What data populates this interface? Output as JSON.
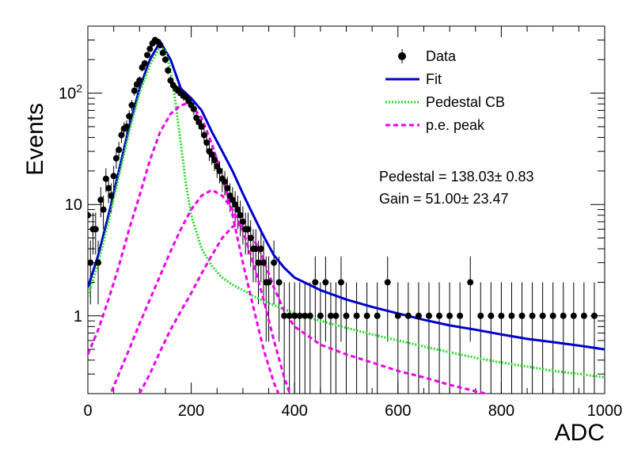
{
  "chart_data": {
    "type": "scatter",
    "title": "",
    "xlabel": "ADC",
    "ylabel": "Events",
    "xlim": [
      0,
      1000
    ],
    "ylim": [
      0.2,
      400
    ],
    "yscale": "log",
    "grid": false,
    "legend_position": "top-right",
    "x_ticks": [
      0,
      200,
      400,
      600,
      800,
      1000
    ],
    "x_tick_labels": [
      "0",
      "200",
      "400",
      "600",
      "800",
      "1000"
    ],
    "y_ticks": [
      1,
      10,
      100
    ],
    "y_tick_labels": [
      "1",
      "10",
      "10^2"
    ],
    "legend": [
      {
        "label": "Data",
        "style": "marker",
        "color": "#000000"
      },
      {
        "label": "Fit",
        "style": "solid",
        "color": "#0000cc"
      },
      {
        "label": "Pedestal CB",
        "style": "dotted",
        "color": "#22dd22"
      },
      {
        "label": "p.e. peak",
        "style": "dashed",
        "color": "#ee00ee"
      }
    ],
    "annotations": [
      {
        "text": "Pedestal = 138.03± 0.83"
      },
      {
        "text": "Gain = 51.00± 23.47"
      }
    ],
    "fit_params": {
      "pedestal": 138.03,
      "pedestal_err": 0.83,
      "gain": 51.0,
      "gain_err": 23.47
    },
    "series": [
      {
        "name": "Data",
        "kind": "points",
        "color": "#000000",
        "x": [
          0,
          5,
          10,
          15,
          20,
          25,
          30,
          35,
          40,
          45,
          50,
          55,
          60,
          65,
          70,
          75,
          80,
          85,
          90,
          95,
          100,
          105,
          110,
          115,
          120,
          125,
          130,
          135,
          140,
          145,
          150,
          155,
          160,
          165,
          170,
          175,
          180,
          185,
          190,
          195,
          200,
          205,
          210,
          215,
          220,
          225,
          230,
          235,
          240,
          245,
          250,
          255,
          260,
          265,
          270,
          275,
          280,
          285,
          290,
          295,
          300,
          305,
          310,
          315,
          320,
          325,
          330,
          335,
          340,
          345,
          350,
          360,
          370,
          380,
          390,
          400,
          410,
          420,
          430,
          440,
          450,
          460,
          470,
          480,
          490,
          500,
          520,
          540,
          560,
          580,
          600,
          620,
          640,
          660,
          680,
          700,
          720,
          740,
          760,
          780,
          800,
          820,
          840,
          860,
          880,
          900,
          920,
          940,
          960,
          980
        ],
        "y": [
          8,
          3,
          6,
          6,
          3,
          11,
          9,
          17,
          14,
          12,
          18,
          26,
          31,
          42,
          48,
          50,
          62,
          78,
          105,
          120,
          130,
          170,
          185,
          220,
          250,
          280,
          300,
          290,
          270,
          230,
          200,
          160,
          130,
          118,
          110,
          105,
          100,
          95,
          92,
          85,
          78,
          72,
          60,
          55,
          50,
          42,
          36,
          30,
          28,
          25,
          22,
          20,
          17,
          16,
          14,
          12,
          11,
          10,
          9,
          8,
          7,
          6,
          6,
          5,
          4,
          4,
          3,
          4,
          3,
          2,
          2,
          3,
          2,
          1,
          1,
          1,
          1,
          1,
          1,
          2,
          1,
          2,
          1,
          1,
          2,
          1,
          1,
          1,
          1,
          2,
          1,
          1,
          1,
          1,
          1,
          1,
          1,
          2,
          1,
          1,
          1,
          1,
          1,
          1,
          1,
          1,
          1,
          1,
          1,
          1
        ]
      },
      {
        "name": "Fit",
        "kind": "line",
        "color": "#0000cc",
        "x": [
          0,
          20,
          40,
          60,
          80,
          100,
          120,
          140,
          160,
          180,
          200,
          220,
          240,
          260,
          280,
          300,
          320,
          340,
          360,
          380,
          400,
          450,
          500,
          550,
          600,
          650,
          700,
          750,
          800,
          850,
          900,
          950,
          1000
        ],
        "y": [
          1.8,
          3.5,
          8,
          20,
          50,
          110,
          200,
          290,
          200,
          110,
          90,
          70,
          45,
          30,
          20,
          12.5,
          8,
          5.2,
          3.5,
          2.7,
          2.2,
          1.7,
          1.4,
          1.2,
          1.05,
          0.92,
          0.82,
          0.75,
          0.68,
          0.62,
          0.58,
          0.54,
          0.5
        ]
      },
      {
        "name": "Pedestal CB",
        "kind": "line",
        "color": "#22dd22",
        "x": [
          0,
          20,
          40,
          60,
          80,
          100,
          120,
          140,
          150,
          160,
          170,
          180,
          190,
          200,
          220,
          240,
          260,
          280,
          300,
          320,
          350,
          400,
          450,
          500,
          550,
          600,
          650,
          700,
          750,
          800,
          850,
          900,
          950,
          1000
        ],
        "y": [
          1.5,
          3,
          7,
          18,
          45,
          100,
          180,
          260,
          240,
          160,
          80,
          35,
          15,
          8,
          4,
          2.8,
          2.2,
          1.9,
          1.7,
          1.5,
          1.3,
          1.05,
          0.9,
          0.78,
          0.68,
          0.6,
          0.53,
          0.47,
          0.42,
          0.38,
          0.35,
          0.32,
          0.3,
          0.28
        ]
      },
      {
        "name": "p.e. peak",
        "kind": "line",
        "color": "#ee00ee",
        "x": [
          0,
          20,
          40,
          60,
          80,
          100,
          120,
          140,
          160,
          180,
          190,
          200,
          220,
          240,
          260,
          280,
          300,
          320,
          340,
          360,
          380
        ],
        "y": [
          0.45,
          0.75,
          1.4,
          2.8,
          6,
          12,
          25,
          45,
          65,
          78,
          80,
          78,
          60,
          35,
          18,
          8,
          3,
          1.2,
          0.5,
          0.25,
          0.15
        ]
      },
      {
        "name": "p.e. peak",
        "kind": "line",
        "color": "#ee00ee",
        "x": [
          40,
          60,
          80,
          100,
          120,
          140,
          160,
          180,
          200,
          220,
          240,
          260,
          280,
          300,
          320,
          340,
          360,
          380,
          400
        ],
        "y": [
          0.18,
          0.3,
          0.5,
          0.85,
          1.4,
          2.3,
          3.8,
          6,
          9,
          12,
          13.5,
          12,
          9,
          5.8,
          3,
          1.4,
          0.6,
          0.28,
          0.15
        ]
      },
      {
        "name": "p.e. peak",
        "kind": "line",
        "color": "#ee00ee",
        "x": [
          100,
          120,
          140,
          160,
          180,
          200,
          220,
          240,
          260,
          280,
          290,
          300,
          320,
          340,
          360,
          380,
          400,
          450,
          500,
          550,
          600,
          650,
          700,
          750,
          770
        ],
        "y": [
          0.2,
          0.3,
          0.48,
          0.75,
          1.1,
          1.6,
          2.4,
          3.5,
          5,
          6.3,
          6.6,
          6.3,
          5,
          3.2,
          1.8,
          1.1,
          0.8,
          0.55,
          0.45,
          0.38,
          0.32,
          0.28,
          0.24,
          0.21,
          0.2
        ]
      }
    ]
  }
}
